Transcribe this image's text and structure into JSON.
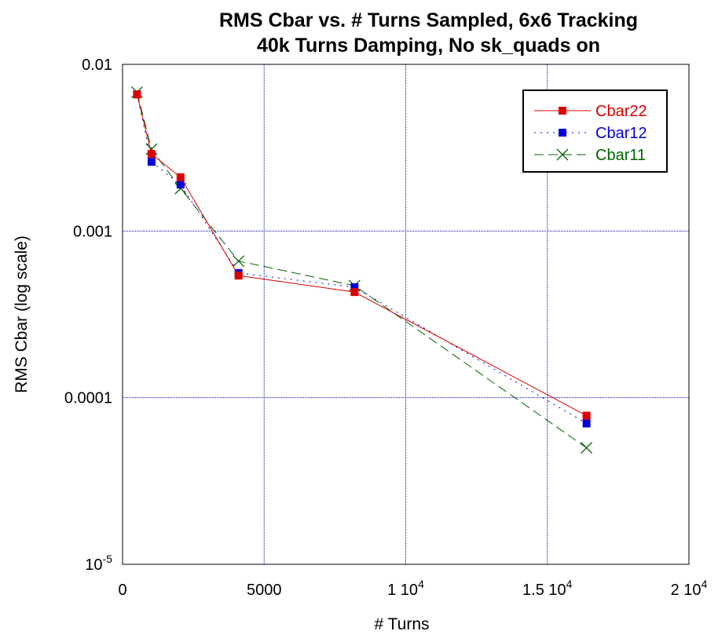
{
  "chart_data": {
    "type": "line",
    "title": [
      "RMS Cbar vs. # Turns Sampled, 6x6 Tracking",
      "40k Turns Damping, No sk_quads on"
    ],
    "xlabel": "# Turns",
    "ylabel": "RMS Cbar (log scale)",
    "xlim": [
      0,
      20000
    ],
    "ylim": [
      1e-05,
      0.01
    ],
    "yscale": "log",
    "grid": true,
    "legend_position": "top-right",
    "x_ticks": [
      {
        "value": 0,
        "label": "0"
      },
      {
        "value": 5000,
        "label": "5000"
      },
      {
        "value": 10000,
        "label": "1 10",
        "exp": "4"
      },
      {
        "value": 15000,
        "label": "1.5 10",
        "exp": "4"
      },
      {
        "value": 20000,
        "label": "2 10",
        "exp": "4"
      }
    ],
    "y_ticks": [
      {
        "value": 0.01,
        "label": "0.01"
      },
      {
        "value": 0.001,
        "label": "0.001"
      },
      {
        "value": 0.0001,
        "label": "0.0001"
      },
      {
        "value": 1e-05,
        "label": "10",
        "exp": "-5"
      }
    ],
    "x": [
      512,
      1024,
      2048,
      4096,
      8192,
      16384
    ],
    "series": [
      {
        "name": "Cbar22",
        "values": [
          0.0066,
          0.0029,
          0.0021,
          0.00054,
          0.00043,
          7.8e-05
        ],
        "color": "#dd0000",
        "marker": "square",
        "dash": "solid"
      },
      {
        "name": "Cbar12",
        "values": [
          0.0066,
          0.0026,
          0.0019,
          0.00056,
          0.00046,
          7e-05
        ],
        "color": "#0000dd",
        "marker": "square",
        "dash": "dotted"
      },
      {
        "name": "Cbar11",
        "values": [
          0.0068,
          0.0031,
          0.0018,
          0.00066,
          0.00047,
          5e-05
        ],
        "color": "#006600",
        "marker": "x",
        "dash": "dashed"
      }
    ]
  }
}
